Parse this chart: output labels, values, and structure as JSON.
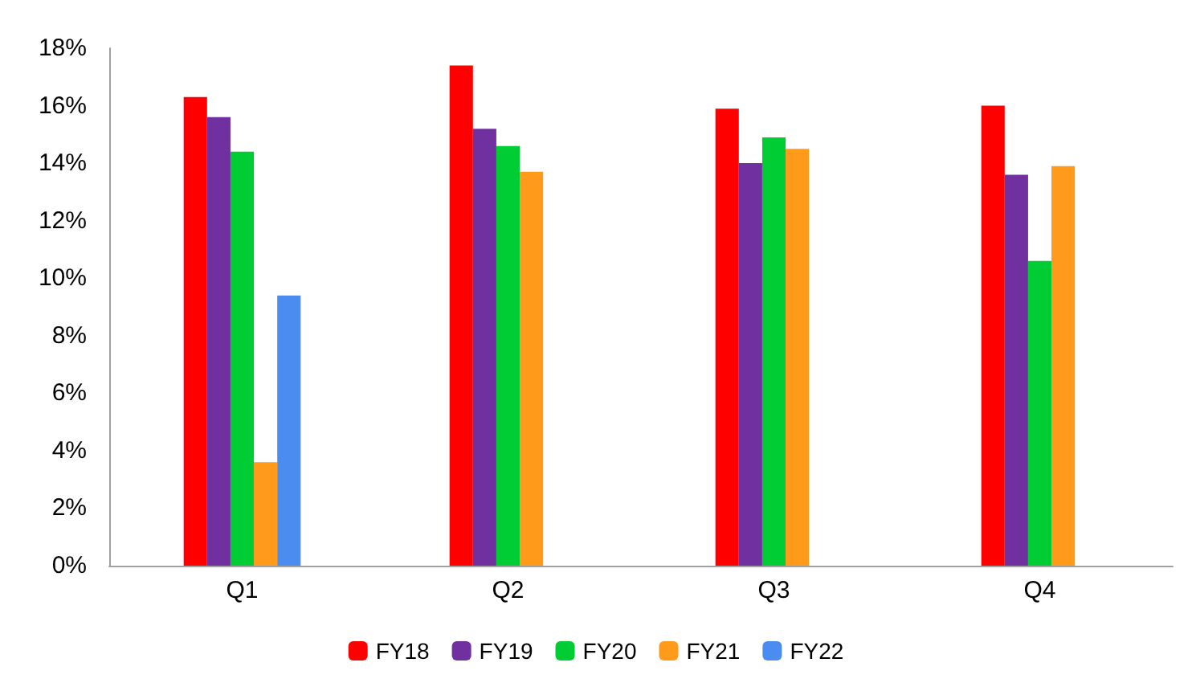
{
  "chart_data": {
    "type": "bar",
    "categories": [
      "Q1",
      "Q2",
      "Q3",
      "Q4"
    ],
    "series": [
      {
        "name": "FY18",
        "color": "#ff0000",
        "values": [
          16.3,
          17.4,
          15.9,
          16.0
        ]
      },
      {
        "name": "FY19",
        "color": "#7030a0",
        "values": [
          15.6,
          15.2,
          14.0,
          13.6
        ]
      },
      {
        "name": "FY20",
        "color": "#00cc33",
        "values": [
          14.4,
          14.6,
          14.9,
          10.6
        ]
      },
      {
        "name": "FY21",
        "color": "#ff9a1a",
        "values": [
          3.6,
          13.7,
          14.5,
          13.9
        ]
      },
      {
        "name": "FY22",
        "color": "#4a8cf0",
        "values": [
          9.4,
          null,
          null,
          null
        ]
      }
    ],
    "ylim": [
      0,
      18
    ],
    "yticks": [
      {
        "value": 0,
        "label": "0%"
      },
      {
        "value": 2,
        "label": "2%"
      },
      {
        "value": 4,
        "label": "4%"
      },
      {
        "value": 6,
        "label": "6%"
      },
      {
        "value": 8,
        "label": "8%"
      },
      {
        "value": 10,
        "label": "10%"
      },
      {
        "value": 12,
        "label": "12%"
      },
      {
        "value": 14,
        "label": "14%"
      },
      {
        "value": 16,
        "label": "16%"
      },
      {
        "value": 18,
        "label": "18%"
      }
    ],
    "grid": false,
    "legend": "bottom"
  }
}
